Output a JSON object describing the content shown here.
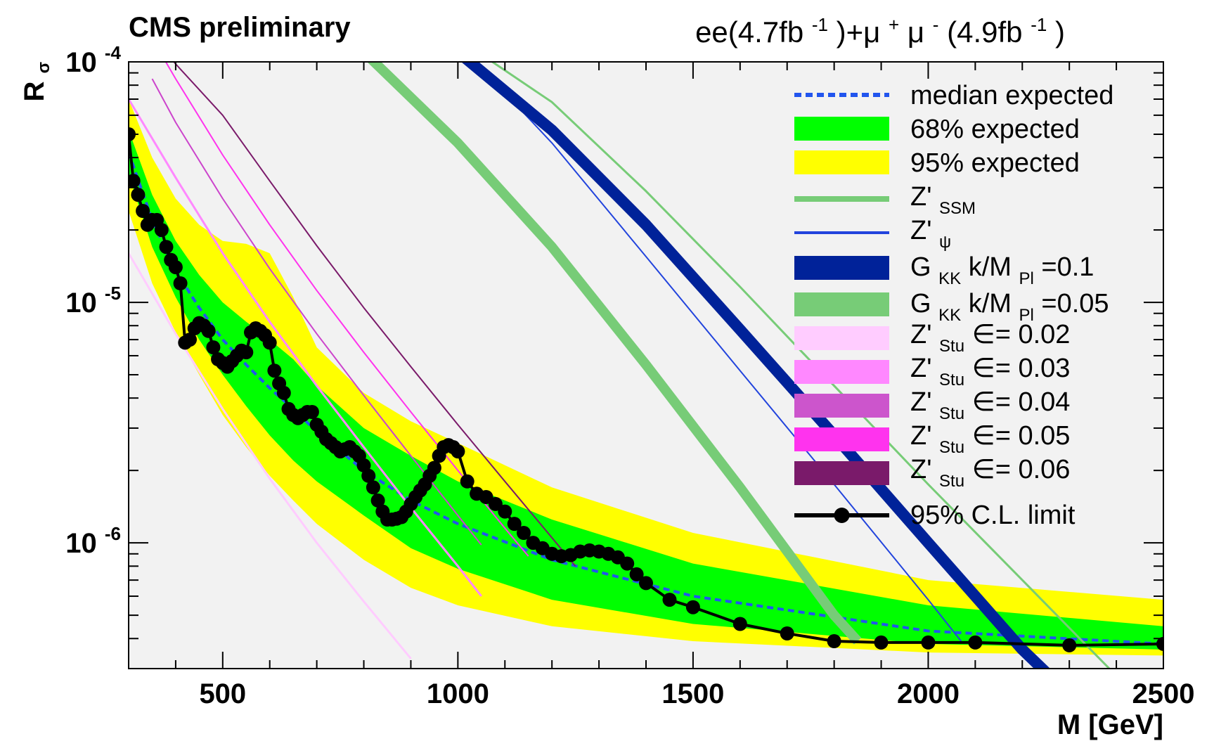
{
  "chart_data": {
    "type": "line",
    "header_left": "CMS preliminary",
    "header_right": {
      "ee": "ee(4.7fb",
      "ee_exp": "-1",
      "mu_part": ")+μ",
      "mu_plus": "+",
      "mu_mid": "μ",
      "mu_minus": "-",
      "mu_lumi": "(4.9fb",
      "mu_exp": "-1",
      "close": ")"
    },
    "ylabel": {
      "main": "R",
      "sub": "σ"
    },
    "xlabel": "M [GeV]",
    "xlim": [
      300,
      2500
    ],
    "ylim": [
      3e-07,
      0.0001
    ],
    "yscale": "log",
    "x_ticks": [
      "500",
      "1000",
      "1500",
      "2000",
      "2500"
    ],
    "y_ticks": [
      {
        "base": "10",
        "exp": "-4",
        "value": 0.0001
      },
      {
        "base": "10",
        "exp": "-5",
        "value": 1e-05
      },
      {
        "base": "10",
        "exp": "-6",
        "value": 1e-06
      }
    ],
    "bands": [
      {
        "key": "band95",
        "label": "95% expected",
        "color": "#ffff00",
        "x": [
          300,
          350,
          400,
          450,
          500,
          550,
          600,
          650,
          700,
          800,
          900,
          1000,
          1200,
          1500,
          2000,
          2500
        ],
        "lo": [
          2.4e-05,
          1.2e-05,
          7.5e-06,
          5e-06,
          3.4e-06,
          2.5e-06,
          1.9e-06,
          1.5e-06,
          1.2e-06,
          8.5e-07,
          6.5e-07,
          5.5e-07,
          4.5e-07,
          3.9e-07,
          3.5e-07,
          3.4e-07
        ],
        "hi": [
          7e-05,
          4e-05,
          2.7e-05,
          2.1e-05,
          1.8e-05,
          1.75e-05,
          1.6e-05,
          1.05e-05,
          6.5e-06,
          4.2e-06,
          3.2e-06,
          2.6e-06,
          1.7e-06,
          1.1e-06,
          7e-07,
          5.8e-07
        ]
      },
      {
        "key": "band68",
        "label": "68% expected",
        "color": "#00ff00",
        "x": [
          300,
          350,
          400,
          450,
          500,
          550,
          600,
          650,
          700,
          800,
          900,
          1000,
          1200,
          1500,
          2000,
          2500
        ],
        "lo": [
          3.4e-05,
          1.7e-05,
          1.05e-05,
          7e-06,
          5e-06,
          3.7e-06,
          2.8e-06,
          2.2e-06,
          1.8e-06,
          1.3e-06,
          9.5e-07,
          7.8e-07,
          5.8e-07,
          4.6e-07,
          3.8e-07,
          3.6e-07
        ],
        "hi": [
          5.2e-05,
          2.8e-05,
          1.8e-05,
          1.3e-05,
          1e-05,
          8.3e-06,
          7e-06,
          5.8e-06,
          4.5e-06,
          3e-06,
          2.3e-06,
          1.8e-06,
          1.25e-06,
          8.2e-07,
          5.5e-07,
          4.5e-07
        ]
      }
    ],
    "series": [
      {
        "key": "stu002",
        "label": "Stu",
        "epsilon": "0.02",
        "color": "#ffccff",
        "width": 3,
        "x": [
          300,
          400,
          500,
          600,
          700,
          800,
          900
        ],
        "y": [
          1.6e-05,
          7.4e-06,
          3.6e-06,
          1.85e-06,
          1e-06,
          5.7e-07,
          3.3e-07
        ]
      },
      {
        "key": "stu003",
        "label": "Stu",
        "epsilon": "0.03",
        "color": "#ff88ff",
        "width": 3,
        "x": [
          300,
          400,
          500,
          600,
          700,
          800,
          900,
          1000,
          1050
        ],
        "y": [
          7e-05,
          3.3e-05,
          1.6e-05,
          8.3e-06,
          4.5e-06,
          2.5e-06,
          1.4e-06,
          8e-07,
          6e-07
        ]
      },
      {
        "key": "stu004",
        "label": "Stu",
        "epsilon": "0.04",
        "color": "#cc44cc",
        "width": 2,
        "x": [
          350,
          400,
          500,
          600,
          700,
          800,
          900,
          1000,
          1050
        ],
        "y": [
          8.5e-05,
          5.6e-05,
          2.7e-05,
          1.38e-05,
          7.4e-06,
          4.1e-06,
          2.3e-06,
          1.3e-06,
          9.8e-07
        ]
      },
      {
        "key": "stu005",
        "label": "Stu",
        "epsilon": "0.05",
        "color": "#ff33ee",
        "width": 2,
        "x": [
          350,
          400,
          500,
          600,
          700,
          800,
          900,
          1000,
          1100,
          1150
        ],
        "y": [
          0.000125,
          8.5e-05,
          4.1e-05,
          2.1e-05,
          1.12e-05,
          6.2e-06,
          3.5e-06,
          2e-06,
          1.15e-06,
          8.8e-07
        ]
      },
      {
        "key": "stu006",
        "label": "Stu",
        "epsilon": "0.06",
        "color": "#7a1a6a",
        "width": 2,
        "x": [
          370,
          400,
          500,
          600,
          700,
          800,
          900,
          1000,
          1100,
          1200,
          1250
        ],
        "y": [
          0.000115,
          9.8e-05,
          6e-05,
          3.2e-05,
          1.72e-05,
          9.5e-06,
          5.4e-06,
          3.1e-06,
          1.8e-06,
          1.05e-06,
          8e-07
        ]
      },
      {
        "key": "gkk005",
        "label": "KK",
        "coupling": "0.05",
        "color": "#77cc77",
        "width": 14,
        "x": [
          800,
          1000,
          1200,
          1400,
          1600,
          1800,
          1850
        ],
        "y": [
          0.00011,
          4.6e-05,
          1.7e-05,
          5.5e-06,
          1.7e-06,
          5e-07,
          3.9e-07
        ]
      },
      {
        "key": "zpsi",
        "label": "ψ",
        "color": "#2244dd",
        "width": 2,
        "x": [
          1000,
          1200,
          1400,
          1600,
          1800,
          2000,
          2070
        ],
        "y": [
          0.00012,
          4.6e-05,
          1.55e-05,
          5.2e-06,
          1.75e-06,
          5.8e-07,
          3.9e-07
        ]
      },
      {
        "key": "gkk01",
        "label": "KK",
        "coupling": "0.1",
        "color": "#002299",
        "width": 16,
        "x": [
          1000,
          1200,
          1400,
          1600,
          1800,
          2000,
          2200,
          2250
        ],
        "y": [
          0.00011,
          5.2e-05,
          2.1e-05,
          7.7e-06,
          2.8e-06,
          1e-06,
          3.6e-07,
          2.9e-07
        ]
      },
      {
        "key": "zssm",
        "label": "SSM",
        "color": "#77cc77",
        "width": 3,
        "x": [
          1000,
          1200,
          1400,
          1600,
          1800,
          2000,
          2200,
          2400,
          2450
        ],
        "y": [
          0.000125,
          6.8e-05,
          2.9e-05,
          1.16e-05,
          4.5e-06,
          1.75e-06,
          7e-07,
          2.8e-07,
          2.3e-07
        ]
      }
    ],
    "expected": {
      "label": "median expected",
      "color": "#2255ee",
      "x": [
        300,
        350,
        400,
        450,
        500,
        550,
        600,
        650,
        700,
        800,
        900,
        1000,
        1200,
        1500,
        2000,
        2500
      ],
      "y": [
        4.2e-05,
        2.2e-05,
        1.35e-05,
        9.5e-06,
        7e-06,
        5.5e-06,
        4.4e-06,
        3.6e-06,
        2.9e-06,
        2e-06,
        1.5e-06,
        1.2e-06,
        8.5e-07,
        6e-07,
        4.3e-07,
        3.8e-07
      ]
    },
    "observed": {
      "label": "95% C.L. limit",
      "color": "#000000",
      "x": [
        300,
        310,
        320,
        330,
        340,
        350,
        360,
        370,
        380,
        390,
        400,
        410,
        420,
        430,
        440,
        450,
        460,
        470,
        480,
        490,
        500,
        510,
        520,
        530,
        540,
        550,
        560,
        570,
        580,
        590,
        600,
        610,
        620,
        630,
        640,
        650,
        660,
        670,
        680,
        690,
        700,
        710,
        720,
        730,
        740,
        750,
        760,
        770,
        780,
        790,
        800,
        810,
        820,
        830,
        840,
        850,
        860,
        870,
        880,
        890,
        900,
        910,
        920,
        930,
        940,
        950,
        960,
        970,
        980,
        990,
        1000,
        1020,
        1040,
        1060,
        1080,
        1100,
        1120,
        1140,
        1160,
        1180,
        1200,
        1220,
        1240,
        1260,
        1280,
        1300,
        1320,
        1340,
        1360,
        1380,
        1400,
        1450,
        1500,
        1600,
        1700,
        1800,
        1900,
        2000,
        2100,
        2300,
        2500
      ],
      "y": [
        5e-05,
        3.2e-05,
        2.8e-05,
        2.4e-05,
        2.1e-05,
        2.2e-05,
        2.2e-05,
        2e-05,
        1.7e-05,
        1.5e-05,
        1.4e-05,
        1.2e-05,
        6.8e-06,
        7e-06,
        7.8e-06,
        8.2e-06,
        8e-06,
        7.6e-06,
        6.5e-06,
        5.8e-06,
        5.6e-06,
        5.4e-06,
        5.7e-06,
        6e-06,
        6.3e-06,
        6.2e-06,
        7.5e-06,
        7.8e-06,
        7.6e-06,
        7.3e-06,
        6.8e-06,
        5.2e-06,
        4.6e-06,
        4.2e-06,
        3.6e-06,
        3.4e-06,
        3.3e-06,
        3.4e-06,
        3.5e-06,
        3.5e-06,
        3.1e-06,
        2.9e-06,
        2.7e-06,
        2.6e-06,
        2.5e-06,
        2.4e-06,
        2.45e-06,
        2.5e-06,
        2.4e-06,
        2.3e-06,
        2.1e-06,
        1.9e-06,
        1.7e-06,
        1.5e-06,
        1.35e-06,
        1.25e-06,
        1.25e-06,
        1.26e-06,
        1.28e-06,
        1.35e-06,
        1.45e-06,
        1.55e-06,
        1.65e-06,
        1.75e-06,
        1.9e-06,
        2.05e-06,
        2.3e-06,
        2.5e-06,
        2.55e-06,
        2.5e-06,
        2.4e-06,
        1.8e-06,
        1.6e-06,
        1.55e-06,
        1.45e-06,
        1.35e-06,
        1.2e-06,
        1.1e-06,
        1e-06,
        9.5e-07,
        9e-07,
        8.8e-07,
        8.9e-07,
        9.2e-07,
        9.3e-07,
        9.2e-07,
        9e-07,
        8.7e-07,
        8.2e-07,
        7.4e-07,
        6.8e-07,
        5.8e-07,
        5.4e-07,
        4.6e-07,
        4.2e-07,
        3.9e-07,
        3.85e-07,
        3.85e-07,
        3.85e-07,
        3.75e-07,
        3.8e-07
      ]
    },
    "legend": {
      "placement": "top-right",
      "entries": [
        {
          "key": "median",
          "text": "median expected"
        },
        {
          "key": "band68",
          "text": "68% expected"
        },
        {
          "key": "band95",
          "text": "95% expected"
        },
        {
          "key": "zssm",
          "text": "Z'",
          "sub": "SSM"
        },
        {
          "key": "zpsi",
          "text": "Z'",
          "sub": "ψ"
        },
        {
          "key": "gkk01",
          "text": "G",
          "sub": "KK",
          "suffix": " k/M",
          "msub": "Pl",
          "value": "=0.1"
        },
        {
          "key": "gkk005",
          "text": "G",
          "sub": "KK",
          "suffix": " k/M",
          "msub": "Pl",
          "value": "=0.05"
        },
        {
          "key": "stu002",
          "text": "Z'",
          "sub": "Stu",
          "value": " ∈= 0.02"
        },
        {
          "key": "stu003",
          "text": "Z'",
          "sub": "Stu",
          "value": " ∈= 0.03"
        },
        {
          "key": "stu004",
          "text": "Z'",
          "sub": "Stu",
          "value": " ∈= 0.04"
        },
        {
          "key": "stu005",
          "text": "Z'",
          "sub": "Stu",
          "value": " ∈= 0.05"
        },
        {
          "key": "stu006",
          "text": "Z'",
          "sub": "Stu",
          "value": " ∈= 0.06"
        },
        {
          "key": "observed",
          "text": "95% C.L. limit"
        }
      ]
    },
    "colors": {
      "excluded_region": "#f2f2f2",
      "frame": "#000000"
    }
  }
}
